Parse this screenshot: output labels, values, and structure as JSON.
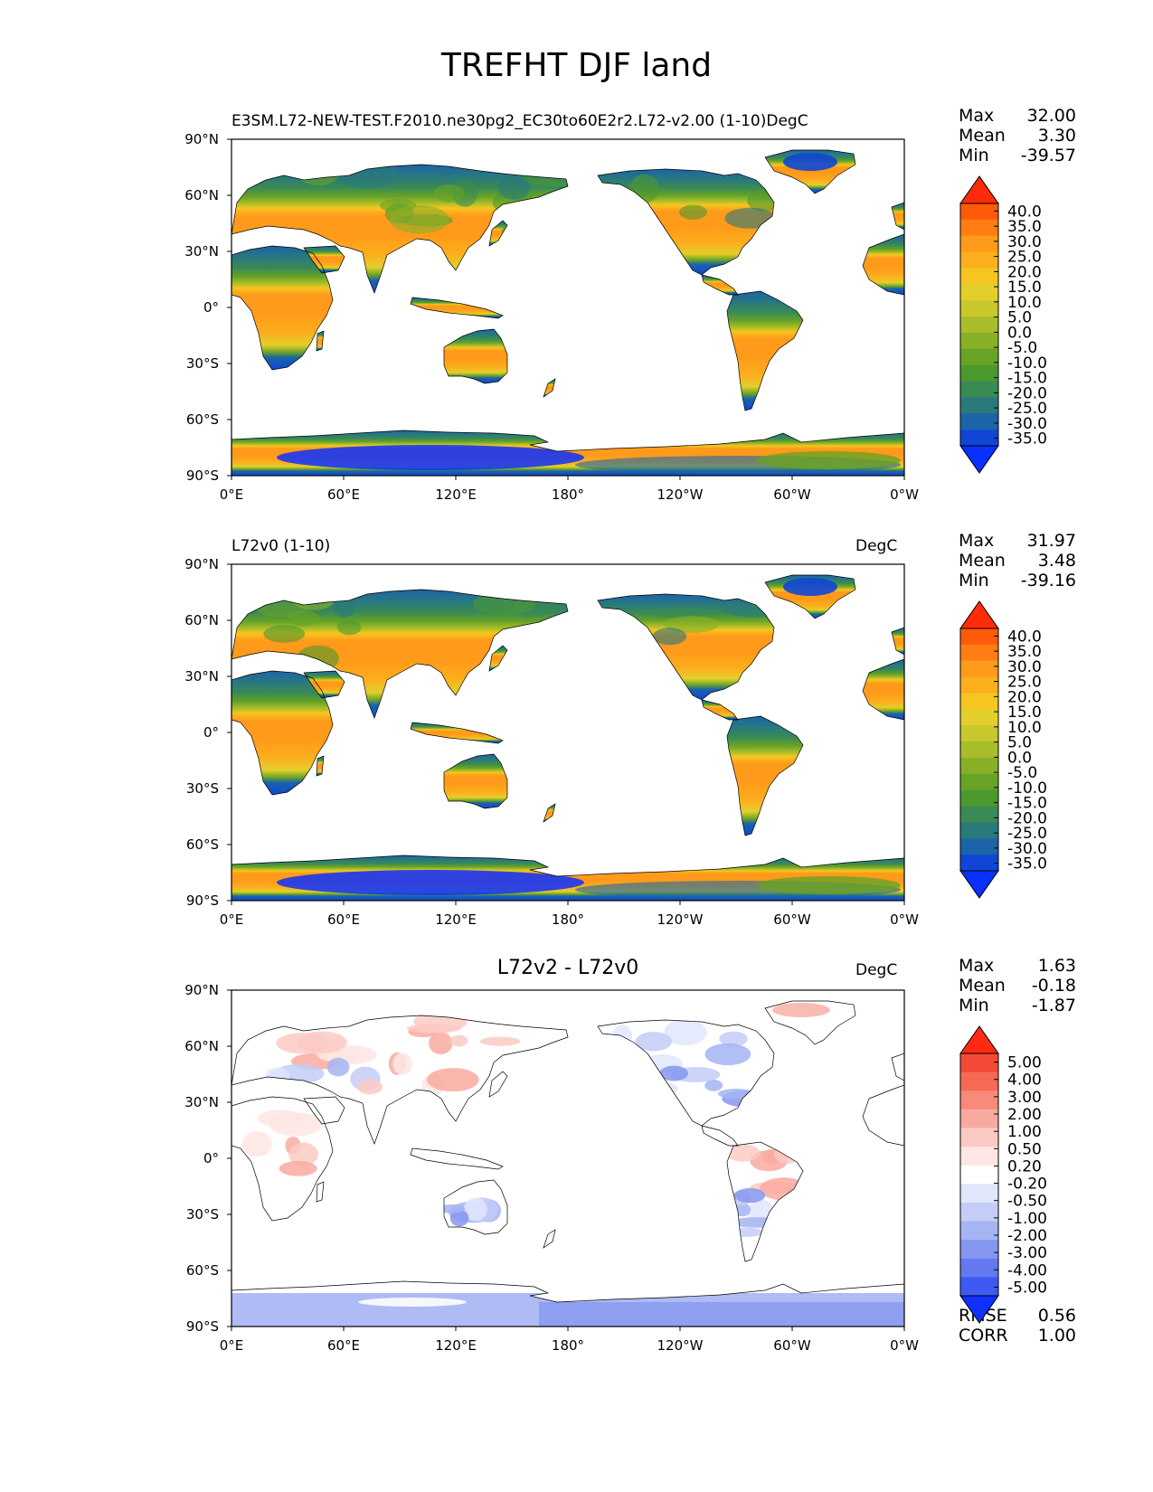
{
  "figure": {
    "title": "TREFHT DJF land"
  },
  "axes": {
    "lat_labels": [
      "90°N",
      "60°N",
      "30°N",
      "0°",
      "30°S",
      "60°S",
      "90°S"
    ],
    "lon_labels": [
      "0°E",
      "60°E",
      "120°E",
      "180°",
      "120°W",
      "60°W",
      "0°W"
    ]
  },
  "panels": [
    {
      "left_title": "",
      "center_title": "",
      "right_title": "E3SM.L72-NEW-TEST.F2010.ne30pg2_EC30to60E2r2.L72-v2.00 (1-10)DegC",
      "stats": [
        {
          "label": "Max",
          "value": "32.00"
        },
        {
          "label": "Mean",
          "value": "3.30"
        },
        {
          "label": "Min",
          "value": "-39.57"
        }
      ],
      "colorbar": {
        "type": "temperature",
        "labels": [
          "40.0",
          "35.0",
          "30.0",
          "25.0",
          "20.0",
          "15.0",
          "10.0",
          "5.0",
          "0.0",
          "-5.0",
          "-10.0",
          "-15.0",
          "-20.0",
          "-25.0",
          "-30.0",
          "-35.0"
        ],
        "colors": [
          "#ff2b0a",
          "#ff5a0a",
          "#ff7d12",
          "#ff9a1a",
          "#fcae1c",
          "#f6c51f",
          "#e3cf2b",
          "#c8c72c",
          "#a8bd2a",
          "#88b027",
          "#68a325",
          "#4c9a2e",
          "#3a8a54",
          "#2a7a7c",
          "#1b64a8",
          "#0f46d6",
          "#0a30ff"
        ]
      }
    },
    {
      "left_title": "L72v0 (1-10)",
      "center_title": "",
      "right_title": "DegC",
      "stats": [
        {
          "label": "Max",
          "value": "31.97"
        },
        {
          "label": "Mean",
          "value": "3.48"
        },
        {
          "label": "Min",
          "value": "-39.16"
        }
      ],
      "colorbar": {
        "type": "temperature",
        "labels": [
          "40.0",
          "35.0",
          "30.0",
          "25.0",
          "20.0",
          "15.0",
          "10.0",
          "5.0",
          "0.0",
          "-5.0",
          "-10.0",
          "-15.0",
          "-20.0",
          "-25.0",
          "-30.0",
          "-35.0"
        ],
        "colors": [
          "#ff2b0a",
          "#ff5a0a",
          "#ff7d12",
          "#ff9a1a",
          "#fcae1c",
          "#f6c51f",
          "#e3cf2b",
          "#c8c72c",
          "#a8bd2a",
          "#88b027",
          "#68a325",
          "#4c9a2e",
          "#3a8a54",
          "#2a7a7c",
          "#1b64a8",
          "#0f46d6",
          "#0a30ff"
        ]
      }
    },
    {
      "left_title": "",
      "center_title": "L72v2 - L72v0",
      "right_title": "DegC",
      "stats": [
        {
          "label": "Max",
          "value": "1.63"
        },
        {
          "label": "Mean",
          "value": "-0.18"
        },
        {
          "label": "Min",
          "value": "-1.87"
        }
      ],
      "extra_stats": [
        {
          "label": "RMSE",
          "value": "0.56"
        },
        {
          "label": "CORR",
          "value": "1.00"
        }
      ],
      "colorbar": {
        "type": "difference",
        "labels": [
          "5.00",
          "4.00",
          "3.00",
          "2.00",
          "1.00",
          "0.50",
          "0.20",
          "-0.20",
          "-0.50",
          "-1.00",
          "-2.00",
          "-3.00",
          "-4.00",
          "-5.00"
        ],
        "colors": [
          "#ff2a12",
          "#f24a35",
          "#f56a55",
          "#f78a78",
          "#f9aaa0",
          "#fbcac4",
          "#fde6e3",
          "#ffffff",
          "#e1e6fb",
          "#c3cdf7",
          "#a5b4f3",
          "#8697ef",
          "#6479ef",
          "#3f5af2",
          "#1030ff"
        ]
      }
    }
  ],
  "colors": {
    "land_outline": "#000000",
    "ocean": "#ffffff"
  }
}
